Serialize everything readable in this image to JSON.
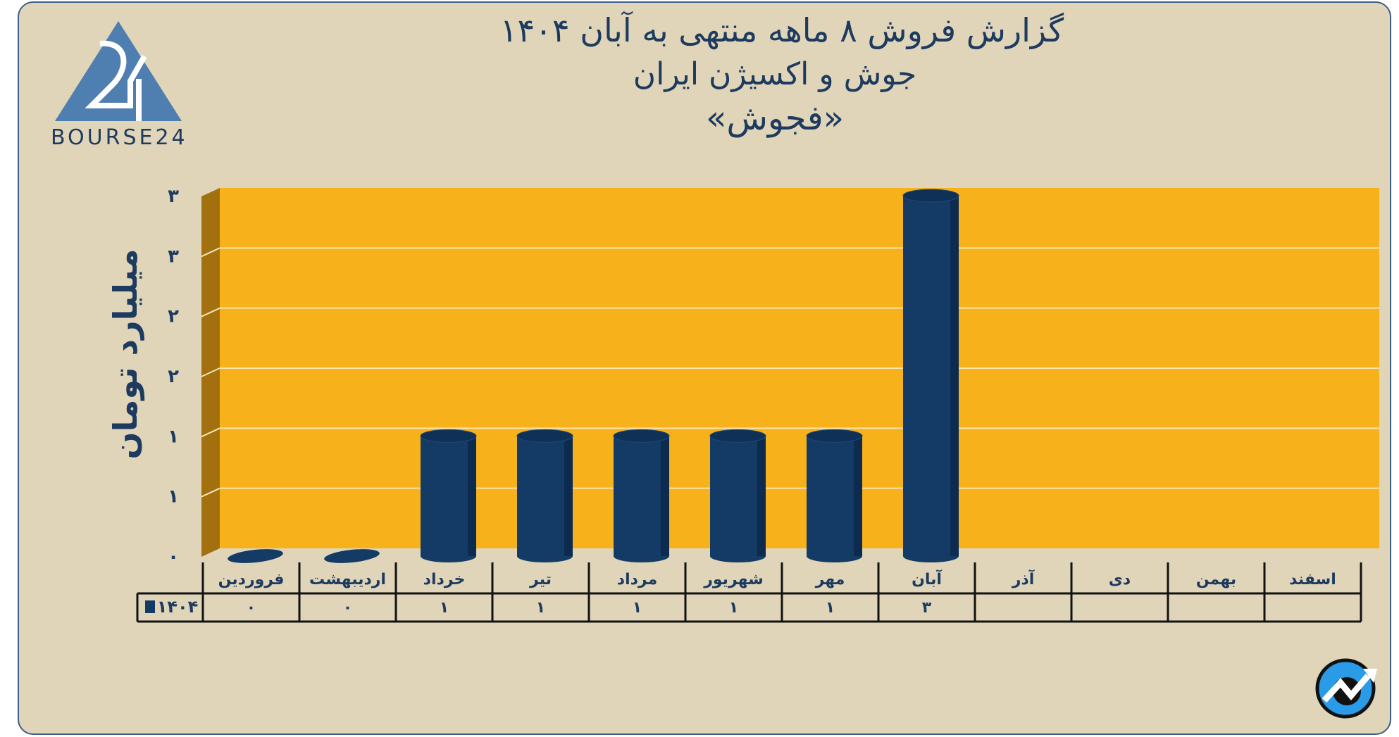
{
  "title_lines": [
    "گزارش  فروش ۸ ماهه منتهی به آبان ۱۴۰۴",
    "جوش و اکسیژن ایران",
    "«فجوش»"
  ],
  "logo_text": "BOURSE24",
  "colors": {
    "background": "#e0d5b9",
    "plot": "#f7b21b",
    "side_wall": "#a2700f",
    "bar": "#143a66",
    "text": "#1d3a5f",
    "brand_blue": "#4f7fb0"
  },
  "chart_data": {
    "type": "bar",
    "style": "3d-cylinder",
    "ylabel": "میلیارد تومان",
    "ylim": [
      0,
      3
    ],
    "yticks": [
      0,
      0.5,
      1,
      1.5,
      2,
      2.5,
      3
    ],
    "ytick_labels": [
      "۰",
      "۱",
      "۱",
      "۲",
      "۲",
      "۳",
      "۳"
    ],
    "grid": true,
    "categories": [
      "فروردین",
      "اردیبهشت",
      "خرداد",
      "تیر",
      "مرداد",
      "شهریور",
      "مهر",
      "آبان",
      "آذر",
      "دی",
      "بهمن",
      "اسفند"
    ],
    "series": [
      {
        "name": "۱۴۰۴",
        "values": [
          0,
          0,
          1,
          1,
          1,
          1,
          1,
          3,
          null,
          null,
          null,
          null
        ],
        "data_labels": [
          "۰",
          "۰",
          "۱",
          "۱",
          "۱",
          "۱",
          "۱",
          "۳",
          "",
          "",
          "",
          ""
        ]
      }
    ],
    "legend": "data-table"
  }
}
